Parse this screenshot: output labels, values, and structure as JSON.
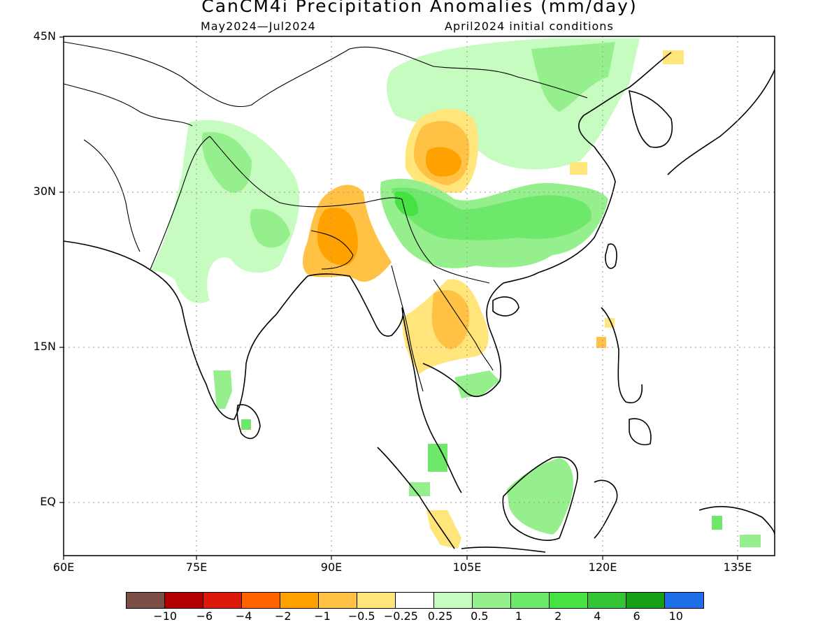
{
  "title": "CanCM4i Precipitation Anomalies (mm/day)",
  "subtitle_period": "May2024—Jul2024",
  "subtitle_init": "April2024 initial conditions",
  "lat_labels": [
    "45N",
    "30N",
    "15N",
    "EQ"
  ],
  "lon_labels": [
    "60E",
    "75E",
    "90E",
    "105E",
    "120E",
    "135E"
  ],
  "colorbar": {
    "colors": [
      "#7a4e44",
      "#b20000",
      "#dd1a0a",
      "#ff6300",
      "#ffa200",
      "#ffc244",
      "#ffe57a",
      "#ffffff",
      "#c6fcc0",
      "#95ef8c",
      "#6de86a",
      "#46e244",
      "#35c435",
      "#149f14",
      "#1f6fe8"
    ],
    "labels": [
      "−10",
      "−6",
      "−4",
      "−2",
      "−1",
      "−0.5",
      "−0.25",
      "0.25",
      "0.5",
      "1",
      "2",
      "4",
      "6",
      "10"
    ]
  },
  "anomaly_regions": [
    {
      "name": "north-india-pakistan-wet",
      "level": "0.5"
    },
    {
      "name": "himalaya-wet",
      "level": "1"
    },
    {
      "name": "bangladesh-dry",
      "level": "−1"
    },
    {
      "name": "tibet-plateau-dry",
      "level": "−1"
    },
    {
      "name": "south-china-wet",
      "level": "1"
    },
    {
      "name": "north-china-mongolia-wet",
      "level": "0.5"
    },
    {
      "name": "indochina-dry",
      "level": "−0.5"
    },
    {
      "name": "borneo-wet",
      "level": "0.5"
    },
    {
      "name": "sumatra-dry",
      "level": "−0.25"
    }
  ]
}
